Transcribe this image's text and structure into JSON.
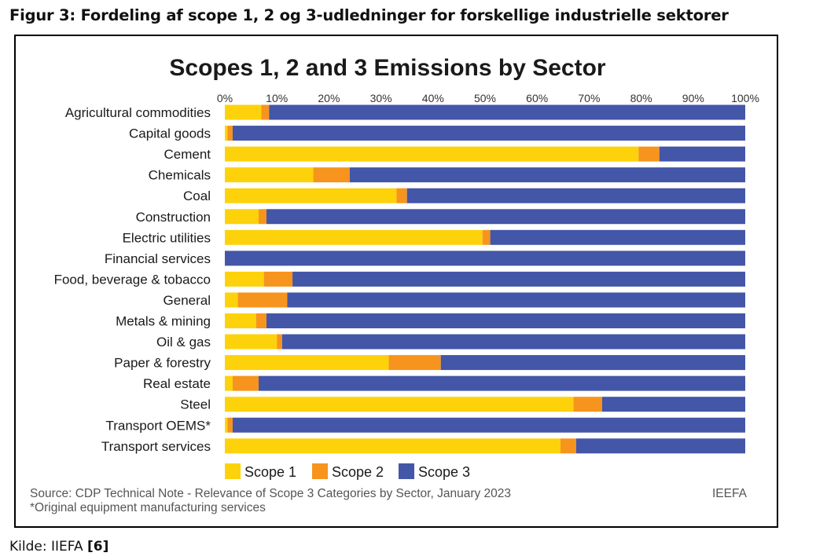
{
  "figure_caption": "Figur 3: Fordeling af scope 1, 2 og 3-udledninger for forskellige industrielle sektorer",
  "source_line": "Source: CDP Technical Note - Relevance of Scope 3 Categories by Sector, January 2023",
  "footnote": "*Original equipment manufacturing services",
  "brand": "IEEFA",
  "kilde_text": "Kilde: IIEFA ",
  "kilde_ref": "[6]",
  "colors": {
    "scope1": "#fdd20a",
    "scope2": "#f7941d",
    "scope3": "#4356a8"
  },
  "chart_data": {
    "type": "bar",
    "orientation": "horizontal",
    "stacked": true,
    "title": "Scopes 1, 2 and 3 Emissions by Sector",
    "x_ticks": [
      "0%",
      "10%",
      "20%",
      "30%",
      "40%",
      "50%",
      "60%",
      "70%",
      "80%",
      "90%",
      "100%"
    ],
    "x_axis_position": "top",
    "xlim": [
      0,
      100
    ],
    "legend_position": "bottom-left",
    "categories": [
      "Agricultural commodities",
      "Capital goods",
      "Cement",
      "Chemicals",
      "Coal",
      "Construction",
      "Electric utilities",
      "Financial services",
      "Food, beverage & tobacco",
      "General",
      "Metals & mining",
      "Oil & gas",
      "Paper & forestry",
      "Real estate",
      "Steel",
      "Transport OEMS*",
      "Transport services"
    ],
    "series": [
      {
        "name": "Scope 1",
        "values": [
          7,
          0.5,
          79.5,
          17,
          33,
          6.5,
          49.5,
          0,
          7.5,
          2.5,
          6,
          10,
          31.5,
          1.5,
          67,
          0.5,
          64.5
        ]
      },
      {
        "name": "Scope 2",
        "values": [
          1.5,
          1,
          4,
          7,
          2,
          1.5,
          1.5,
          0,
          5.5,
          9.5,
          2,
          1,
          10,
          5,
          5.5,
          1,
          3
        ]
      },
      {
        "name": "Scope 3",
        "values": [
          91.5,
          98.5,
          16.5,
          76,
          65,
          92,
          49,
          100,
          87,
          88,
          92,
          89,
          58.5,
          93.5,
          27.5,
          98.5,
          32.5
        ]
      }
    ]
  }
}
